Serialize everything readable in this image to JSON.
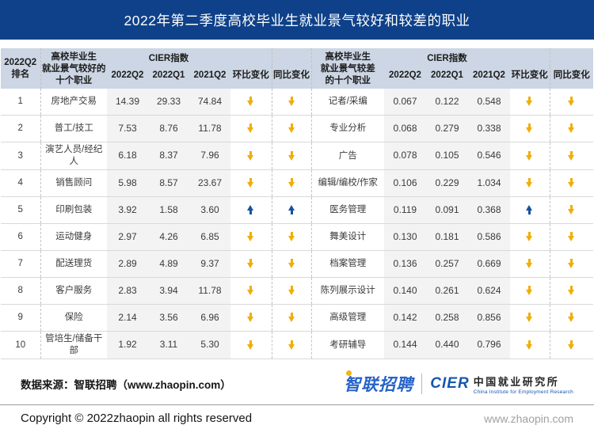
{
  "page": {
    "title": "2022年第二季度高校毕业生就业景气较好和较差的职业"
  },
  "colors": {
    "title_bar_bg": "#0e4189",
    "header_bg": "#ccd6e4",
    "cier_col_bg": "#f3f3f3",
    "arrow_down": "#efae08",
    "arrow_up": "#17519e",
    "logo_blue": "#2563c9",
    "logo_yellow": "#f5b50a"
  },
  "chart_data": {
    "type": "table",
    "title": "2022年第二季度高校毕业生就业景气较好和较差的职业",
    "headers": {
      "rank": "2022Q2\n排名",
      "good_occupation": "高校毕业生\n就业景气较好的\n十个职业",
      "bad_occupation": "高校毕业生\n就业景气较差\n的十个职业",
      "cier_group": "CIER指数",
      "quarter_cols": [
        "2022Q2",
        "2022Q1",
        "2021Q2"
      ],
      "mom": "环比变化",
      "yoy": "同比变化"
    },
    "rows": [
      {
        "rank": "1",
        "good": {
          "occupation": "房地产交易",
          "values": [
            "14.39",
            "29.33",
            "74.84"
          ],
          "mom": "down",
          "yoy": "down"
        },
        "bad": {
          "occupation": "记者/采编",
          "values": [
            "0.067",
            "0.122",
            "0.548"
          ],
          "mom": "down",
          "yoy": "down"
        }
      },
      {
        "rank": "2",
        "good": {
          "occupation": "普工/技工",
          "values": [
            "7.53",
            "8.76",
            "11.78"
          ],
          "mom": "down",
          "yoy": "down"
        },
        "bad": {
          "occupation": "专业分析",
          "values": [
            "0.068",
            "0.279",
            "0.338"
          ],
          "mom": "down",
          "yoy": "down"
        }
      },
      {
        "rank": "3",
        "good": {
          "occupation": "演艺人员/经纪人",
          "values": [
            "6.18",
            "8.37",
            "7.96"
          ],
          "mom": "down",
          "yoy": "down"
        },
        "bad": {
          "occupation": "广告",
          "values": [
            "0.078",
            "0.105",
            "0.546"
          ],
          "mom": "down",
          "yoy": "down"
        }
      },
      {
        "rank": "4",
        "good": {
          "occupation": "销售顾问",
          "values": [
            "5.98",
            "8.57",
            "23.67"
          ],
          "mom": "down",
          "yoy": "down"
        },
        "bad": {
          "occupation": "编辑/编校/作家",
          "values": [
            "0.106",
            "0.229",
            "1.034"
          ],
          "mom": "down",
          "yoy": "down"
        }
      },
      {
        "rank": "5",
        "good": {
          "occupation": "印刷包装",
          "values": [
            "3.92",
            "1.58",
            "3.60"
          ],
          "mom": "up",
          "yoy": "up"
        },
        "bad": {
          "occupation": "医务管理",
          "values": [
            "0.119",
            "0.091",
            "0.368"
          ],
          "mom": "up",
          "yoy": "down"
        }
      },
      {
        "rank": "6",
        "good": {
          "occupation": "运动健身",
          "values": [
            "2.97",
            "4.26",
            "6.85"
          ],
          "mom": "down",
          "yoy": "down"
        },
        "bad": {
          "occupation": "舞美设计",
          "values": [
            "0.130",
            "0.181",
            "0.586"
          ],
          "mom": "down",
          "yoy": "down"
        }
      },
      {
        "rank": "7",
        "good": {
          "occupation": "配送理货",
          "values": [
            "2.89",
            "4.89",
            "9.37"
          ],
          "mom": "down",
          "yoy": "down"
        },
        "bad": {
          "occupation": "档案管理",
          "values": [
            "0.136",
            "0.257",
            "0.669"
          ],
          "mom": "down",
          "yoy": "down"
        }
      },
      {
        "rank": "8",
        "good": {
          "occupation": "客户服务",
          "values": [
            "2.83",
            "3.94",
            "11.78"
          ],
          "mom": "down",
          "yoy": "down"
        },
        "bad": {
          "occupation": "陈列展示设计",
          "values": [
            "0.140",
            "0.261",
            "0.624"
          ],
          "mom": "down",
          "yoy": "down"
        }
      },
      {
        "rank": "9",
        "good": {
          "occupation": "保险",
          "values": [
            "2.14",
            "3.56",
            "6.96"
          ],
          "mom": "down",
          "yoy": "down"
        },
        "bad": {
          "occupation": "高级管理",
          "values": [
            "0.142",
            "0.258",
            "0.856"
          ],
          "mom": "down",
          "yoy": "down"
        }
      },
      {
        "rank": "10",
        "good": {
          "occupation": "管培生/储备干部",
          "values": [
            "1.92",
            "3.11",
            "5.30"
          ],
          "mom": "down",
          "yoy": "down"
        },
        "bad": {
          "occupation": "考研辅导",
          "values": [
            "0.144",
            "0.440",
            "0.796"
          ],
          "mom": "down",
          "yoy": "down"
        }
      }
    ]
  },
  "footer": {
    "source": "数据来源：智联招聘（www.zhaopin.com）",
    "zhaopin_logo": "智联招聘",
    "cier_logo": "CIER",
    "cier_name": "中国就业研究所",
    "cier_tagline": "China Institute for Employment Research",
    "copyright": "Copyright © 2022zhaopin all rights reserved",
    "website": "www.zhaopin.com"
  }
}
